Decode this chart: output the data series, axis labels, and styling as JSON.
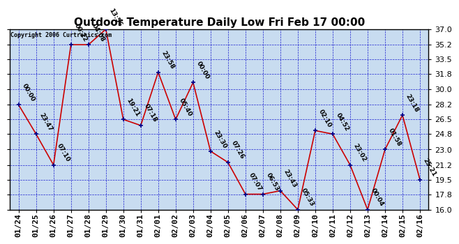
{
  "title": "Outdoor Temperature Daily Low Fri Feb 17 00:00",
  "copyright": "Copyright 2006 Curtronics.com",
  "x_labels": [
    "01/24",
    "01/25",
    "01/26",
    "01/27",
    "01/28",
    "01/29",
    "01/30",
    "01/31",
    "02/01",
    "02/02",
    "02/03",
    "02/04",
    "02/05",
    "02/06",
    "02/07",
    "02/08",
    "02/09",
    "02/10",
    "02/11",
    "02/12",
    "02/13",
    "02/14",
    "02/15",
    "02/16"
  ],
  "y_values": [
    28.2,
    24.8,
    21.2,
    35.2,
    35.2,
    37.0,
    26.5,
    25.8,
    32.0,
    26.5,
    30.8,
    22.8,
    21.5,
    17.8,
    17.8,
    18.2,
    16.0,
    25.2,
    24.8,
    21.2,
    16.0,
    23.0,
    27.0,
    19.5
  ],
  "point_labels": [
    "00:00",
    "23:47",
    "07:10",
    "00:22",
    "04:08",
    "13:56",
    "19:21",
    "07:18",
    "23:58",
    "05:40",
    "00:00",
    "23:30",
    "07:26",
    "07:07",
    "06:53",
    "23:43",
    "05:33",
    "02:10",
    "04:52",
    "23:02",
    "00:04",
    "01:58",
    "23:18",
    "25:21"
  ],
  "ylim": [
    16.0,
    37.0
  ],
  "yticks": [
    16.0,
    17.8,
    19.5,
    21.2,
    23.0,
    24.8,
    26.5,
    28.2,
    30.0,
    31.8,
    33.5,
    35.2,
    37.0
  ],
  "line_color": "#cc0000",
  "marker_color": "#00008b",
  "bg_color": "#c8dcf0",
  "grid_color": "#0000cc",
  "outer_bg": "#ffffff",
  "title_fontsize": 11,
  "tick_fontsize": 8,
  "point_label_fontsize": 6.5,
  "copyright_fontsize": 6
}
